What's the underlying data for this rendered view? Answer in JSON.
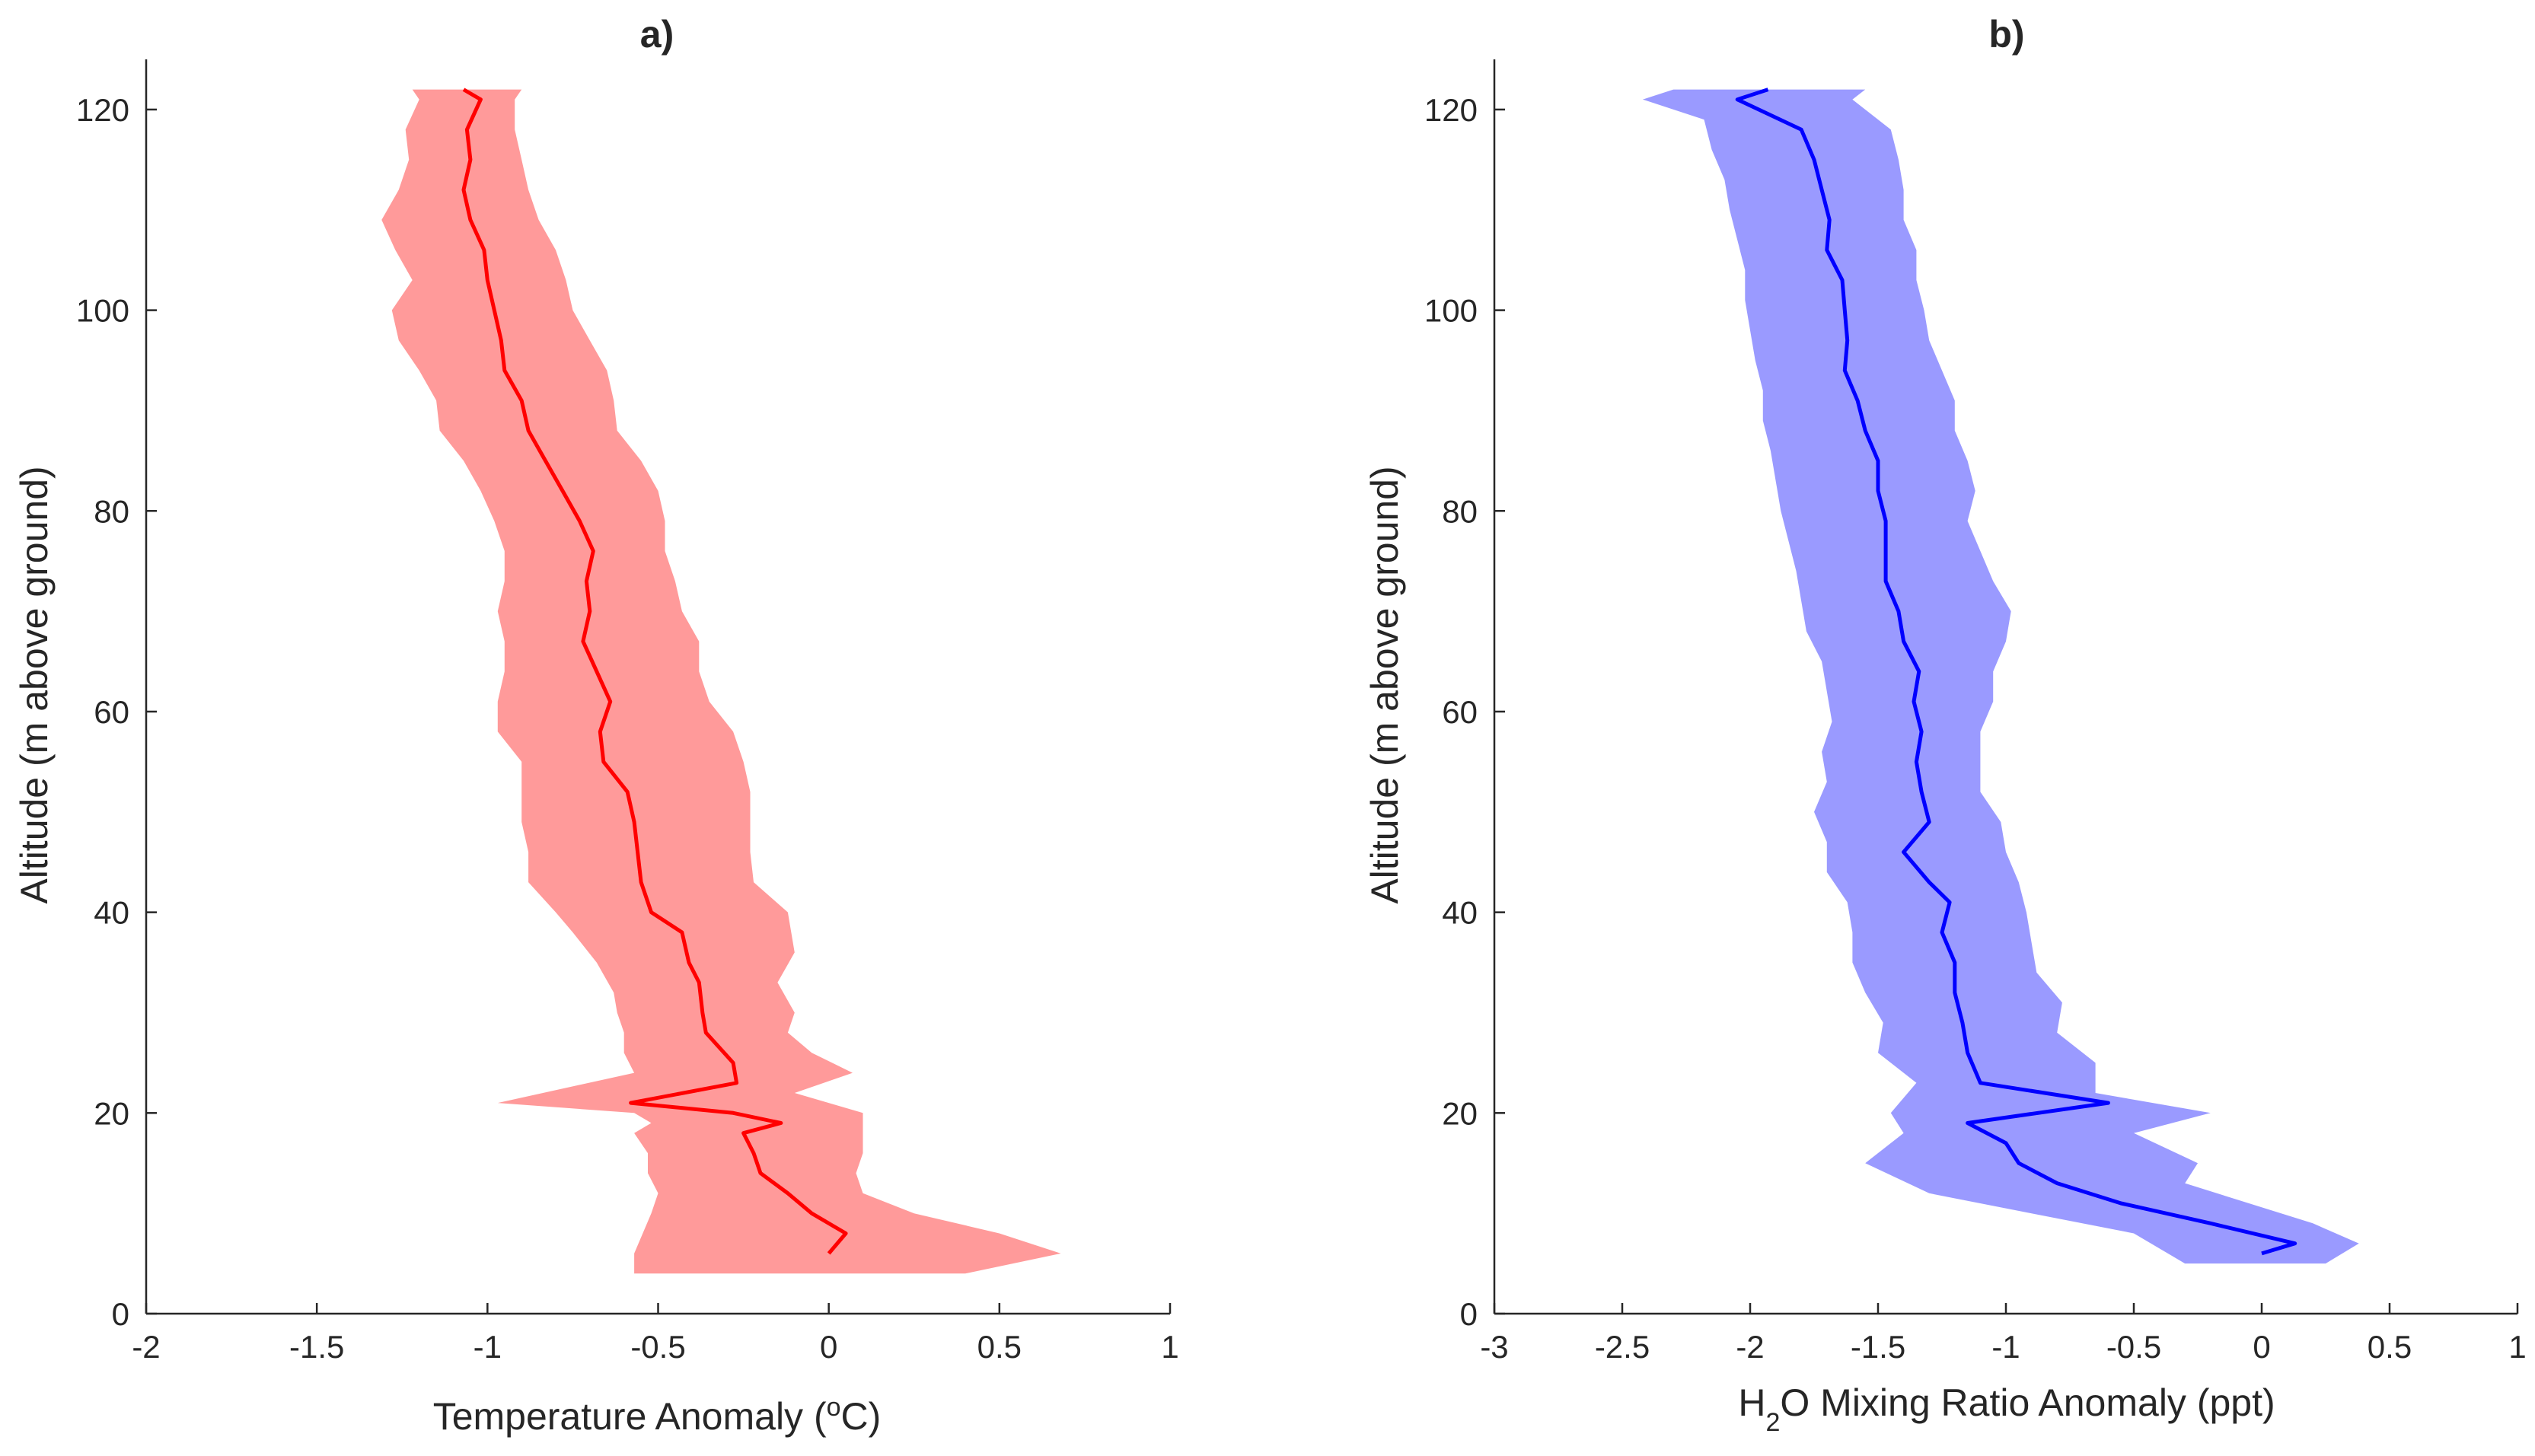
{
  "chart_data": [
    {
      "type": "line",
      "panel": "a",
      "title": "a)",
      "xlabel_main": "Temperature Anomaly (",
      "xlabel_sup": "o",
      "xlabel_tail": "C)",
      "ylabel": "Altitude (m above ground)",
      "xlim": [
        -2,
        1
      ],
      "ylim": [
        0,
        125
      ],
      "xticks": [
        "-2",
        "-1.5",
        "-1",
        "-0.5",
        "0",
        "0.5",
        "1"
      ],
      "xtick_values": [
        -2,
        -1.5,
        -1,
        -0.5,
        0,
        0.5,
        1
      ],
      "yticks": [
        "0",
        "20",
        "40",
        "60",
        "80",
        "100",
        "120"
      ],
      "ytick_values": [
        0,
        20,
        40,
        60,
        80,
        100,
        120
      ],
      "line_color": "#ff0000",
      "band_color": "#ff9a9a",
      "series": [
        {
          "name": "mean",
          "altitude": [
            6,
            8,
            10,
            12,
            14,
            16,
            18,
            19,
            20,
            21,
            23,
            25,
            28,
            30,
            33,
            35,
            38,
            40,
            43,
            46,
            49,
            52,
            55,
            58,
            61,
            64,
            67,
            70,
            73,
            76,
            79,
            82,
            85,
            88,
            91,
            94,
            97,
            100,
            103,
            106,
            109,
            112,
            115,
            118,
            121,
            122
          ],
          "values": [
            0.0,
            0.05,
            -0.05,
            -0.12,
            -0.2,
            -0.22,
            -0.25,
            -0.14,
            -0.28,
            -0.58,
            -0.27,
            -0.28,
            -0.36,
            -0.37,
            -0.38,
            -0.41,
            -0.43,
            -0.52,
            -0.55,
            -0.56,
            -0.57,
            -0.59,
            -0.66,
            -0.67,
            -0.64,
            -0.68,
            -0.72,
            -0.7,
            -0.71,
            -0.69,
            -0.73,
            -0.78,
            -0.83,
            -0.88,
            -0.9,
            -0.95,
            -0.96,
            -0.98,
            -1.0,
            -1.01,
            -1.05,
            -1.07,
            -1.05,
            -1.06,
            -1.02,
            -1.07
          ]
        },
        {
          "name": "band_lower",
          "altitude": [
            4,
            6,
            10,
            12,
            14,
            16,
            18,
            19,
            20,
            21,
            24,
            26,
            28,
            30,
            32,
            35,
            38,
            40,
            43,
            46,
            49,
            52,
            55,
            58,
            61,
            64,
            67,
            70,
            73,
            76,
            79,
            82,
            85,
            88,
            91,
            94,
            97,
            100,
            103,
            106,
            109,
            112,
            115,
            118,
            121,
            122
          ],
          "values": [
            -0.57,
            -0.57,
            -0.52,
            -0.5,
            -0.53,
            -0.53,
            -0.57,
            -0.52,
            -0.57,
            -0.97,
            -0.57,
            -0.6,
            -0.6,
            -0.62,
            -0.63,
            -0.68,
            -0.75,
            -0.8,
            -0.88,
            -0.88,
            -0.9,
            -0.9,
            -0.9,
            -0.97,
            -0.97,
            -0.95,
            -0.95,
            -0.97,
            -0.95,
            -0.95,
            -0.98,
            -1.02,
            -1.07,
            -1.14,
            -1.15,
            -1.2,
            -1.26,
            -1.28,
            -1.22,
            -1.27,
            -1.31,
            -1.26,
            -1.23,
            -1.24,
            -1.2,
            -1.22
          ]
        },
        {
          "name": "band_upper",
          "altitude": [
            4,
            6,
            8,
            10,
            12,
            14,
            16,
            18,
            20,
            22,
            24,
            26,
            28,
            30,
            33,
            36,
            40,
            43,
            46,
            49,
            52,
            55,
            58,
            61,
            64,
            67,
            70,
            73,
            76,
            79,
            82,
            85,
            88,
            91,
            94,
            97,
            100,
            103,
            106,
            109,
            112,
            115,
            118,
            121,
            122
          ],
          "values": [
            0.4,
            0.68,
            0.5,
            0.25,
            0.1,
            0.08,
            0.1,
            0.1,
            0.1,
            -0.1,
            0.07,
            -0.05,
            -0.12,
            -0.1,
            -0.15,
            -0.1,
            -0.12,
            -0.22,
            -0.23,
            -0.23,
            -0.23,
            -0.25,
            -0.28,
            -0.35,
            -0.38,
            -0.38,
            -0.43,
            -0.45,
            -0.48,
            -0.48,
            -0.5,
            -0.55,
            -0.62,
            -0.63,
            -0.65,
            -0.7,
            -0.75,
            -0.77,
            -0.8,
            -0.85,
            -0.88,
            -0.9,
            -0.92,
            -0.92,
            -0.9
          ]
        }
      ]
    },
    {
      "type": "line",
      "panel": "b",
      "title": "b)",
      "xlabel_main": "H",
      "xlabel_sub": "2",
      "xlabel_tail": "O Mixing Ratio Anomaly (ppt)",
      "ylabel": "Altitude (m above ground)",
      "xlim": [
        -3,
        1
      ],
      "ylim": [
        0,
        125
      ],
      "xticks": [
        "-3",
        "-2.5",
        "-2",
        "-1.5",
        "-1",
        "-0.5",
        "0",
        "0.5",
        "1"
      ],
      "xtick_values": [
        -3,
        -2.5,
        -2,
        -1.5,
        -1,
        -0.5,
        0,
        0.5,
        1
      ],
      "yticks": [
        "0",
        "20",
        "40",
        "60",
        "80",
        "100",
        "120"
      ],
      "ytick_values": [
        0,
        20,
        40,
        60,
        80,
        100,
        120
      ],
      "line_color": "#0000ff",
      "band_color": "#9a9aff",
      "series": [
        {
          "name": "mean",
          "altitude": [
            6,
            7,
            9,
            11,
            13,
            15,
            17,
            19,
            21,
            23,
            26,
            29,
            32,
            35,
            38,
            41,
            43,
            46,
            49,
            52,
            55,
            58,
            61,
            64,
            67,
            70,
            73,
            76,
            79,
            82,
            85,
            88,
            91,
            94,
            97,
            100,
            103,
            106,
            109,
            112,
            115,
            118,
            121,
            122
          ],
          "values": [
            0.0,
            0.13,
            -0.2,
            -0.55,
            -0.8,
            -0.95,
            -1.0,
            -1.15,
            -0.6,
            -1.1,
            -1.15,
            -1.17,
            -1.2,
            -1.2,
            -1.25,
            -1.22,
            -1.3,
            -1.4,
            -1.3,
            -1.33,
            -1.35,
            -1.33,
            -1.36,
            -1.34,
            -1.4,
            -1.42,
            -1.47,
            -1.47,
            -1.47,
            -1.5,
            -1.5,
            -1.55,
            -1.58,
            -1.63,
            -1.62,
            -1.63,
            -1.64,
            -1.7,
            -1.69,
            -1.72,
            -1.75,
            -1.8,
            -2.05,
            -1.93
          ]
        },
        {
          "name": "band_lower",
          "altitude": [
            5,
            8,
            10,
            12,
            15,
            18,
            20,
            23,
            26,
            29,
            32,
            35,
            38,
            41,
            44,
            47,
            50,
            53,
            56,
            59,
            62,
            65,
            68,
            71,
            74,
            77,
            80,
            83,
            86,
            89,
            92,
            95,
            98,
            101,
            104,
            107,
            110,
            113,
            116,
            119,
            121,
            122
          ],
          "values": [
            -0.3,
            -0.5,
            -0.9,
            -1.3,
            -1.55,
            -1.4,
            -1.45,
            -1.35,
            -1.5,
            -1.48,
            -1.55,
            -1.6,
            -1.6,
            -1.62,
            -1.7,
            -1.7,
            -1.75,
            -1.7,
            -1.72,
            -1.68,
            -1.7,
            -1.72,
            -1.78,
            -1.8,
            -1.82,
            -1.85,
            -1.88,
            -1.9,
            -1.92,
            -1.95,
            -1.95,
            -1.98,
            -2.0,
            -2.02,
            -2.02,
            -2.05,
            -2.08,
            -2.1,
            -2.15,
            -2.18,
            -2.42,
            -2.3
          ]
        },
        {
          "name": "band_upper",
          "altitude": [
            5,
            7,
            9,
            11,
            13,
            15,
            18,
            20,
            22,
            25,
            28,
            31,
            34,
            37,
            40,
            43,
            46,
            49,
            52,
            55,
            58,
            61,
            64,
            67,
            70,
            73,
            76,
            79,
            82,
            85,
            88,
            91,
            94,
            97,
            100,
            103,
            106,
            109,
            112,
            115,
            118,
            121,
            122
          ],
          "values": [
            0.25,
            0.38,
            0.2,
            -0.05,
            -0.3,
            -0.25,
            -0.5,
            -0.2,
            -0.65,
            -0.65,
            -0.8,
            -0.78,
            -0.88,
            -0.9,
            -0.92,
            -0.95,
            -1.0,
            -1.02,
            -1.1,
            -1.1,
            -1.1,
            -1.05,
            -1.05,
            -1.0,
            -0.98,
            -1.05,
            -1.1,
            -1.15,
            -1.12,
            -1.15,
            -1.2,
            -1.2,
            -1.25,
            -1.3,
            -1.32,
            -1.35,
            -1.35,
            -1.4,
            -1.4,
            -1.42,
            -1.45,
            -1.6,
            -1.55
          ]
        }
      ]
    }
  ]
}
